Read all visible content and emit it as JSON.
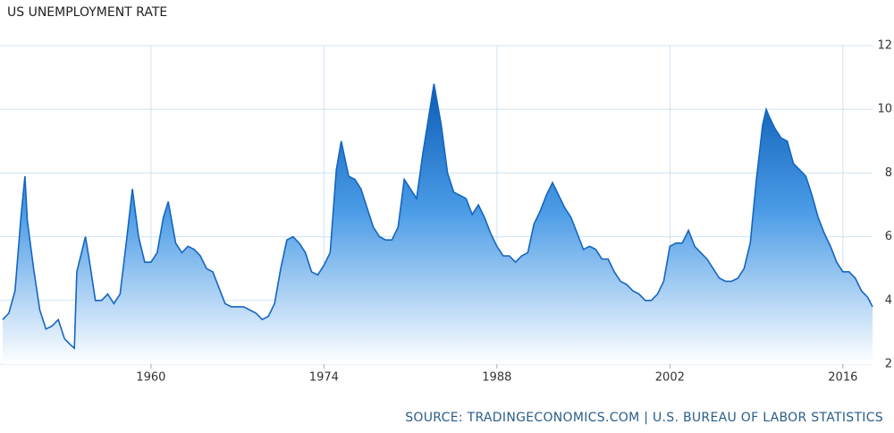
{
  "chart_data": {
    "type": "area",
    "title": "US UNEMPLOYMENT RATE",
    "source": "SOURCE: TRADINGECONOMICS.COM | U.S. BUREAU OF LABOR STATISTICS",
    "x": [
      1948.0,
      1948.5,
      1949.0,
      1949.5,
      1949.8,
      1950.0,
      1950.5,
      1951.0,
      1951.5,
      1952.0,
      1952.5,
      1953.0,
      1953.5,
      1953.8,
      1954.0,
      1954.7,
      1955.0,
      1955.5,
      1956.0,
      1956.5,
      1957.0,
      1957.5,
      1958.0,
      1958.5,
      1959.0,
      1959.5,
      1960.0,
      1960.5,
      1961.0,
      1961.4,
      1962.0,
      1962.5,
      1963.0,
      1963.5,
      1964.0,
      1964.5,
      1965.0,
      1965.5,
      1966.0,
      1966.5,
      1967.0,
      1967.5,
      1968.0,
      1968.5,
      1969.0,
      1969.5,
      1970.0,
      1970.5,
      1971.0,
      1971.5,
      1972.0,
      1972.5,
      1973.0,
      1973.5,
      1974.0,
      1974.5,
      1975.0,
      1975.4,
      1976.0,
      1976.5,
      1977.0,
      1977.5,
      1978.0,
      1978.5,
      1979.0,
      1979.5,
      1980.0,
      1980.5,
      1981.0,
      1981.5,
      1982.0,
      1982.5,
      1982.9,
      1983.5,
      1984.0,
      1984.5,
      1985.0,
      1985.5,
      1986.0,
      1986.5,
      1987.0,
      1987.5,
      1988.0,
      1988.5,
      1989.0,
      1989.5,
      1990.0,
      1990.5,
      1991.0,
      1991.5,
      1992.0,
      1992.5,
      1993.0,
      1993.5,
      1994.0,
      1994.5,
      1995.0,
      1995.5,
      1996.0,
      1996.5,
      1997.0,
      1997.5,
      1998.0,
      1998.5,
      1999.0,
      1999.5,
      2000.0,
      2000.5,
      2001.0,
      2001.5,
      2002.0,
      2002.5,
      2003.0,
      2003.5,
      2004.0,
      2004.5,
      2005.0,
      2005.5,
      2006.0,
      2006.5,
      2007.0,
      2007.5,
      2008.0,
      2008.5,
      2009.0,
      2009.5,
      2009.8,
      2010.0,
      2010.5,
      2011.0,
      2011.5,
      2012.0,
      2012.5,
      2013.0,
      2013.5,
      2014.0,
      2014.5,
      2015.0,
      2015.5,
      2016.0,
      2016.5,
      2017.0,
      2017.5,
      2018.0,
      2018.4
    ],
    "series": [
      {
        "name": "Unemployment Rate",
        "color": "#1565c0",
        "values": [
          3.4,
          3.6,
          4.3,
          6.7,
          7.9,
          6.5,
          5.0,
          3.7,
          3.1,
          3.2,
          3.4,
          2.8,
          2.6,
          2.5,
          4.9,
          6.0,
          5.3,
          4.0,
          4.0,
          4.2,
          3.9,
          4.2,
          5.8,
          7.5,
          6.0,
          5.2,
          5.2,
          5.5,
          6.6,
          7.1,
          5.8,
          5.5,
          5.7,
          5.6,
          5.4,
          5.0,
          4.9,
          4.4,
          3.9,
          3.8,
          3.8,
          3.8,
          3.7,
          3.6,
          3.4,
          3.5,
          3.9,
          5.0,
          5.9,
          6.0,
          5.8,
          5.5,
          4.9,
          4.8,
          5.1,
          5.5,
          8.1,
          9.0,
          7.9,
          7.8,
          7.5,
          6.9,
          6.3,
          6.0,
          5.9,
          5.9,
          6.3,
          7.8,
          7.5,
          7.2,
          8.6,
          9.8,
          10.8,
          9.5,
          8.0,
          7.4,
          7.3,
          7.2,
          6.7,
          7.0,
          6.6,
          6.1,
          5.7,
          5.4,
          5.4,
          5.2,
          5.4,
          5.5,
          6.4,
          6.8,
          7.3,
          7.7,
          7.3,
          6.9,
          6.6,
          6.1,
          5.6,
          5.7,
          5.6,
          5.3,
          5.3,
          4.9,
          4.6,
          4.5,
          4.3,
          4.2,
          4.0,
          4.0,
          4.2,
          4.6,
          5.7,
          5.8,
          5.8,
          6.2,
          5.7,
          5.5,
          5.3,
          5.0,
          4.7,
          4.6,
          4.6,
          4.7,
          5.0,
          5.8,
          7.8,
          9.5,
          10.0,
          9.8,
          9.4,
          9.1,
          9.0,
          8.3,
          8.1,
          7.9,
          7.3,
          6.6,
          6.1,
          5.7,
          5.2,
          4.9,
          4.9,
          4.7,
          4.3,
          4.1,
          3.8
        ]
      }
    ],
    "xlim": [
      1948,
      2018.4
    ],
    "xticks": [
      1960,
      1974,
      1988,
      2002,
      2016
    ],
    "ylim": [
      2,
      12
    ],
    "yticks": [
      2,
      4,
      6,
      8,
      10,
      12
    ],
    "grid": true
  }
}
